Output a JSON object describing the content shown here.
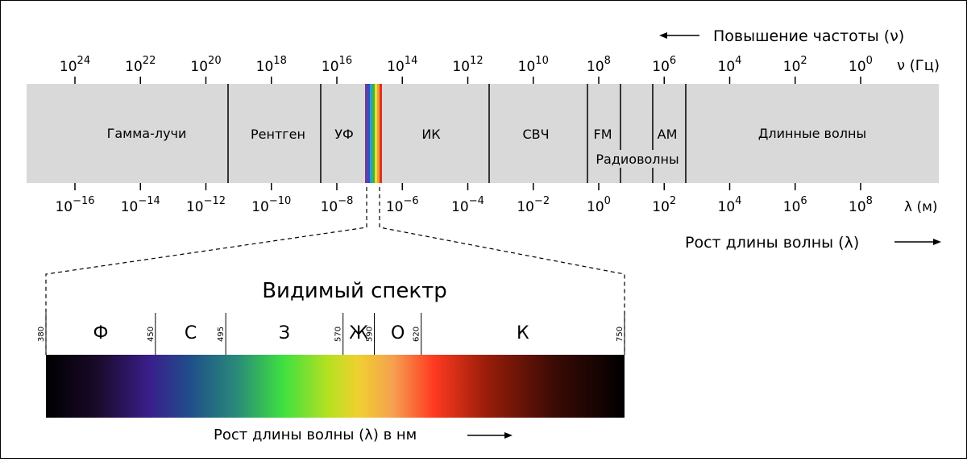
{
  "frequency_axis": {
    "direction_label": "Повышение частоты (ν)",
    "unit_label": "ν (Гц)",
    "ticks": [
      {
        "base": "10",
        "exponent": "24"
      },
      {
        "base": "10",
        "exponent": "22"
      },
      {
        "base": "10",
        "exponent": "20"
      },
      {
        "base": "10",
        "exponent": "18"
      },
      {
        "base": "10",
        "exponent": "16"
      },
      {
        "base": "10",
        "exponent": "14"
      },
      {
        "base": "10",
        "exponent": "12"
      },
      {
        "base": "10",
        "exponent": "10"
      },
      {
        "base": "10",
        "exponent": "8"
      },
      {
        "base": "10",
        "exponent": "6"
      },
      {
        "base": "10",
        "exponent": "4"
      },
      {
        "base": "10",
        "exponent": "2"
      },
      {
        "base": "10",
        "exponent": "0"
      }
    ]
  },
  "bands": {
    "gamma": "Гамма-лучи",
    "xray": "Рентген",
    "uv": "УФ",
    "ir": "ИК",
    "microwave": "СВЧ",
    "fm": "FM",
    "am": "AM",
    "long": "Длинные волны",
    "radio": "Радиоволны"
  },
  "wavelength_axis": {
    "unit_label": "λ (м)",
    "direction_label": "Рост длины волны (λ)",
    "ticks": [
      {
        "base": "10",
        "exponent": "−16"
      },
      {
        "base": "10",
        "exponent": "−14"
      },
      {
        "base": "10",
        "exponent": "−12"
      },
      {
        "base": "10",
        "exponent": "−10"
      },
      {
        "base": "10",
        "exponent": "−8"
      },
      {
        "base": "10",
        "exponent": "−6"
      },
      {
        "base": "10",
        "exponent": "−4"
      },
      {
        "base": "10",
        "exponent": "−2"
      },
      {
        "base": "10",
        "exponent": "0"
      },
      {
        "base": "10",
        "exponent": "2"
      },
      {
        "base": "10",
        "exponent": "4"
      },
      {
        "base": "10",
        "exponent": "6"
      },
      {
        "base": "10",
        "exponent": "8"
      }
    ]
  },
  "visible": {
    "title": "Видимый спектр",
    "direction_label": "Рост длины волны (λ) в нм",
    "boundaries_nm": [
      380,
      450,
      495,
      570,
      590,
      620,
      750
    ],
    "colors": [
      "Ф",
      "С",
      "З",
      "Ж",
      "О",
      "К"
    ]
  }
}
